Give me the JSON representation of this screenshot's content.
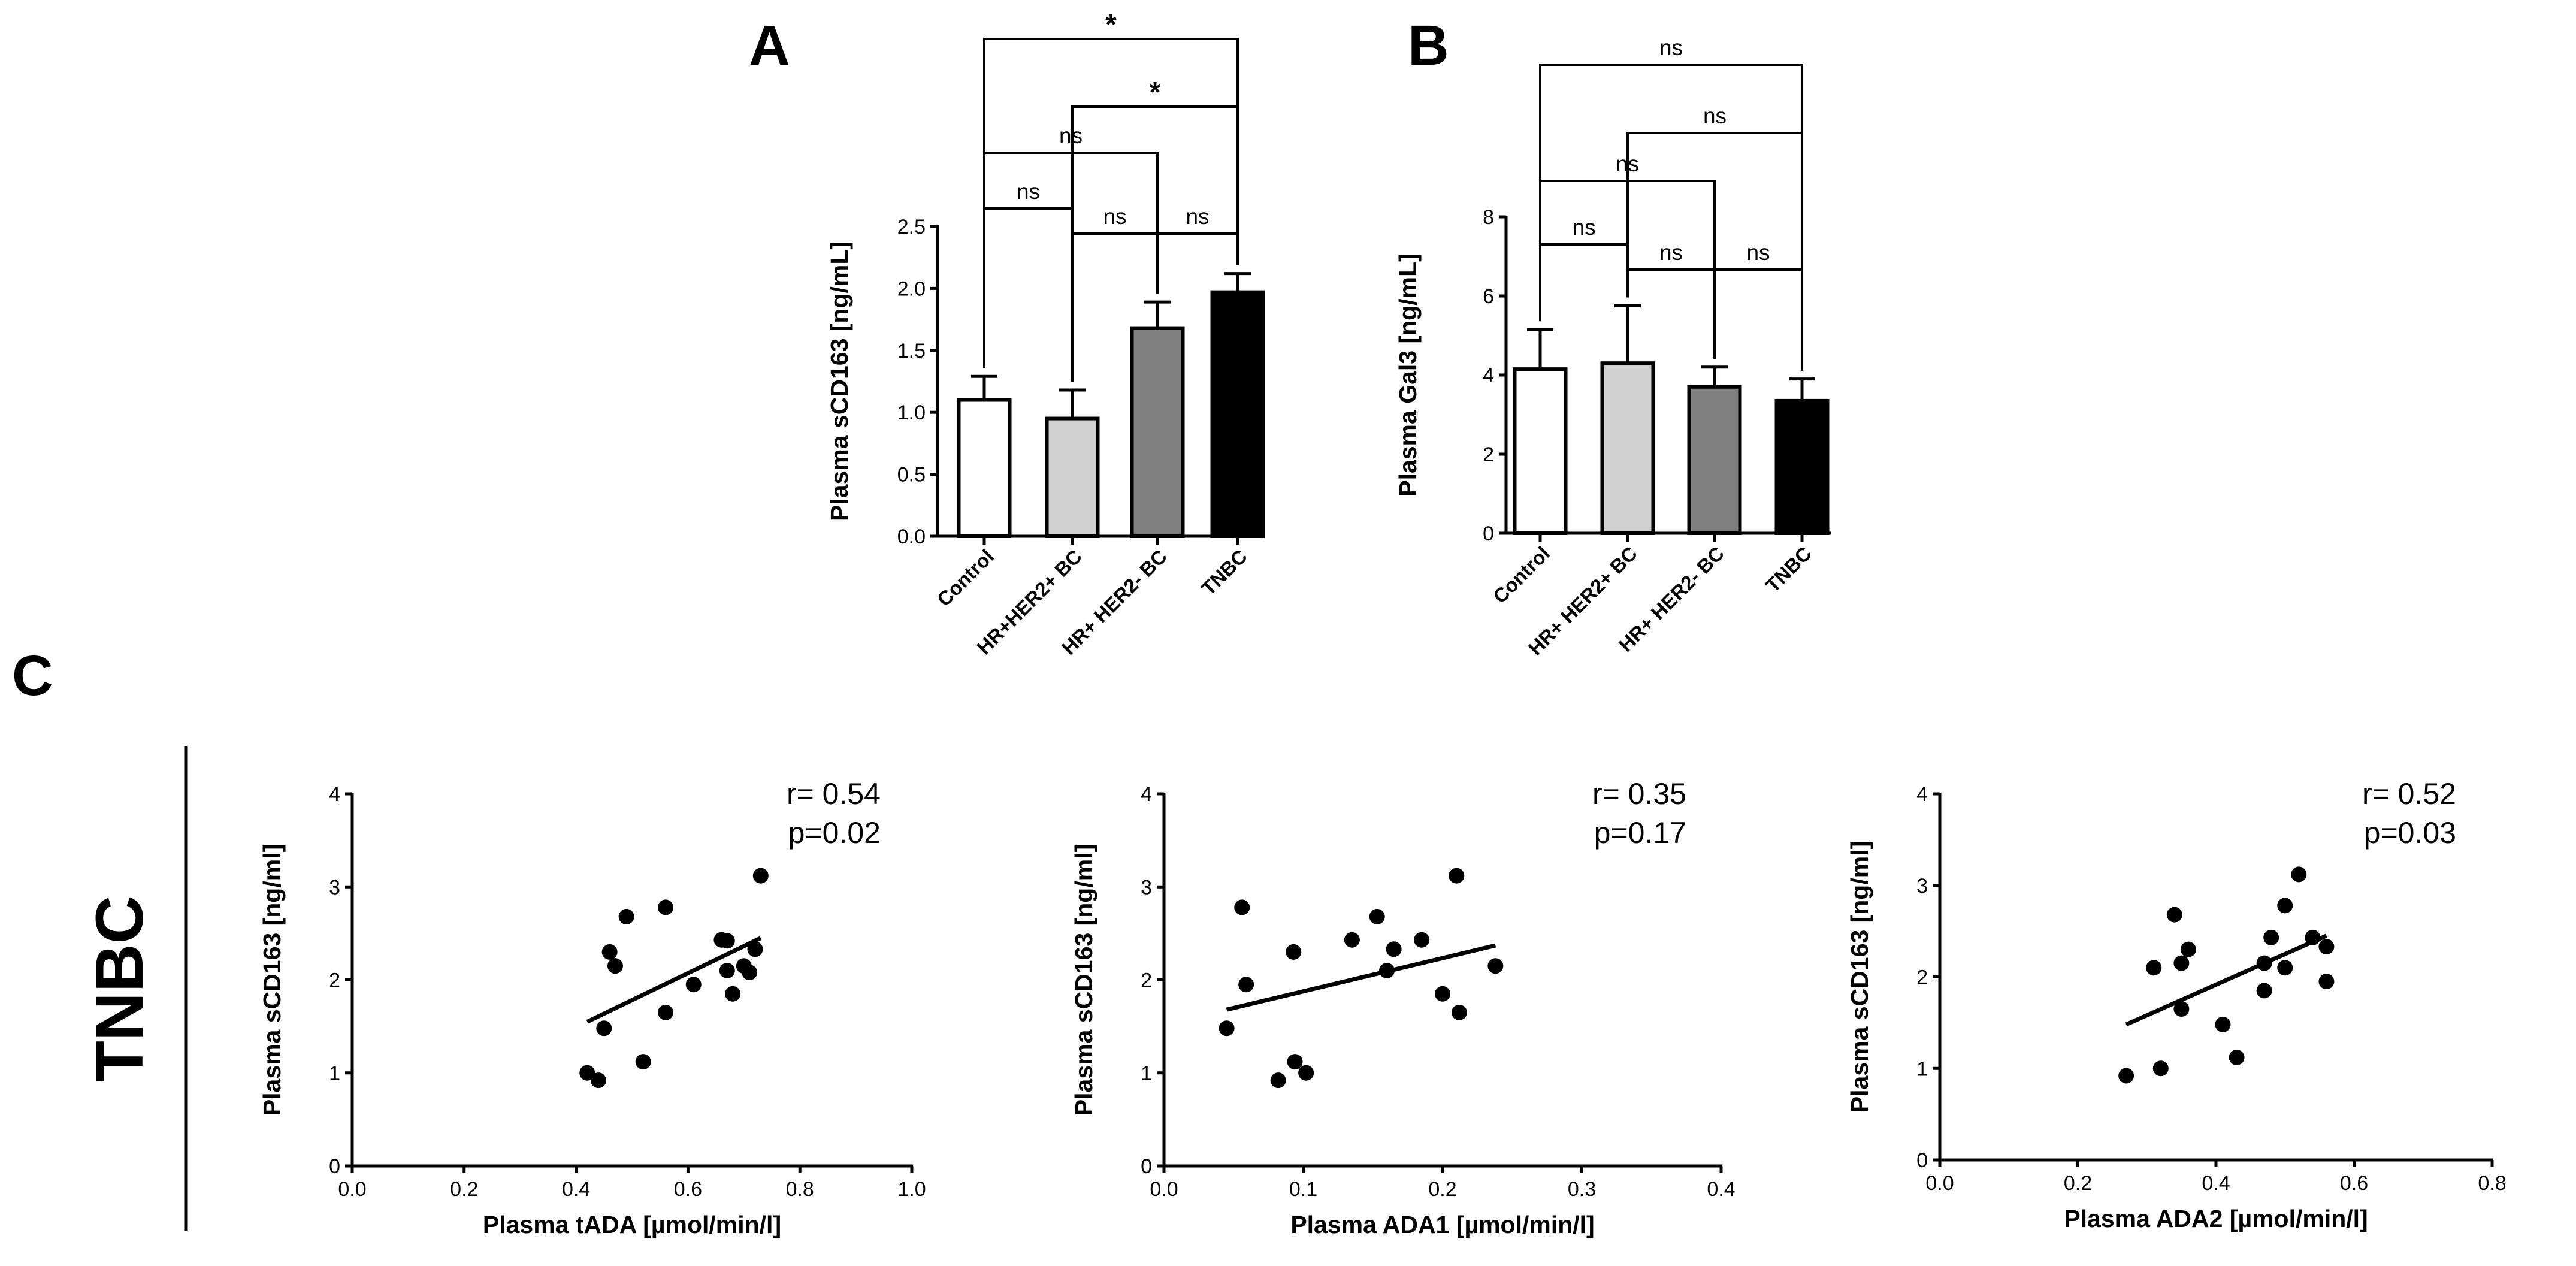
{
  "panel_labels": {
    "a": "A",
    "b": "B",
    "c": "C"
  },
  "row_label": "TNBC",
  "chart_data": [
    {
      "id": "A",
      "type": "bar",
      "ylabel": "Plasma sCD163 [ng/mL]",
      "ylim": [
        0,
        2.5
      ],
      "yticks": [
        "0.0",
        "0.5",
        "1.0",
        "1.5",
        "2.0",
        "2.5"
      ],
      "categories": [
        "Control",
        "HR+HER2+ BC",
        "HR+ HER2- BC",
        "TNBC"
      ],
      "values": [
        1.1,
        0.95,
        1.68,
        1.97
      ],
      "errors": [
        0.19,
        0.23,
        0.21,
        0.15
      ],
      "bar_colors": [
        "#ffffff",
        "#d0d0d0",
        "#808080",
        "#000000"
      ],
      "comparisons": [
        {
          "from": 0,
          "to": 3,
          "label": "*"
        },
        {
          "from": 1,
          "to": 3,
          "label": "*"
        },
        {
          "from": 0,
          "to": 2,
          "label": "ns"
        },
        {
          "from": 0,
          "to": 1,
          "label": "ns"
        },
        {
          "from": 1,
          "to": 2,
          "label": "ns"
        },
        {
          "from": 2,
          "to": 3,
          "label": "ns"
        }
      ]
    },
    {
      "id": "B",
      "type": "bar",
      "ylabel": "Plasma Gal3 [ng/mL]",
      "ylim": [
        0,
        8
      ],
      "yticks": [
        "0",
        "2",
        "4",
        "6",
        "8"
      ],
      "categories": [
        "Control",
        "HR+ HER2+ BC",
        "HR+ HER2- BC",
        "TNBC"
      ],
      "values": [
        4.15,
        4.3,
        3.7,
        3.35
      ],
      "errors": [
        1.0,
        1.45,
        0.5,
        0.55
      ],
      "bar_colors": [
        "#ffffff",
        "#d0d0d0",
        "#808080",
        "#000000"
      ],
      "comparisons": [
        {
          "from": 0,
          "to": 3,
          "label": "ns"
        },
        {
          "from": 1,
          "to": 3,
          "label": "ns"
        },
        {
          "from": 0,
          "to": 2,
          "label": "ns"
        },
        {
          "from": 0,
          "to": 1,
          "label": "ns"
        },
        {
          "from": 1,
          "to": 2,
          "label": "ns"
        },
        {
          "from": 2,
          "to": 3,
          "label": "ns"
        }
      ]
    },
    {
      "id": "C1",
      "type": "scatter",
      "xlabel": "Plasma tADA [µmol/min/l]",
      "ylabel": "Plasma sCD163 [ng/ml]",
      "xlim": [
        0,
        1.0
      ],
      "ylim": [
        0,
        4
      ],
      "xticks": [
        "0.0",
        "0.2",
        "0.4",
        "0.6",
        "0.8",
        "1.0"
      ],
      "yticks": [
        "0",
        "1",
        "2",
        "3",
        "4"
      ],
      "points": [
        [
          0.42,
          1.0
        ],
        [
          0.44,
          0.92
        ],
        [
          0.45,
          1.48
        ],
        [
          0.46,
          2.3
        ],
        [
          0.47,
          2.15
        ],
        [
          0.49,
          2.68
        ],
        [
          0.52,
          1.12
        ],
        [
          0.56,
          2.78
        ],
        [
          0.56,
          1.65
        ],
        [
          0.61,
          1.95
        ],
        [
          0.66,
          2.43
        ],
        [
          0.67,
          2.42
        ],
        [
          0.67,
          2.1
        ],
        [
          0.68,
          1.85
        ],
        [
          0.7,
          2.15
        ],
        [
          0.71,
          2.08
        ],
        [
          0.72,
          2.33
        ],
        [
          0.73,
          3.12
        ]
      ],
      "fit": [
        [
          0.42,
          1.55
        ],
        [
          0.73,
          2.45
        ]
      ],
      "r_text": "r= 0.54",
      "p_text": "p=0.02"
    },
    {
      "id": "C2",
      "type": "scatter",
      "xlabel": "Plasma ADA1 [µmol/min/l]",
      "ylabel": "Plasma sCD163 [ng/ml]",
      "xlim": [
        0,
        0.4
      ],
      "ylim": [
        0,
        4
      ],
      "xticks": [
        "0.0",
        "0.1",
        "0.2",
        "0.3",
        "0.4"
      ],
      "yticks": [
        "0",
        "1",
        "2",
        "3",
        "4"
      ],
      "points": [
        [
          0.045,
          1.48
        ],
        [
          0.056,
          2.78
        ],
        [
          0.059,
          1.95
        ],
        [
          0.082,
          0.92
        ],
        [
          0.093,
          2.3
        ],
        [
          0.094,
          1.12
        ],
        [
          0.102,
          1.0
        ],
        [
          0.135,
          2.43
        ],
        [
          0.153,
          2.68
        ],
        [
          0.16,
          2.1
        ],
        [
          0.165,
          2.33
        ],
        [
          0.185,
          2.43
        ],
        [
          0.2,
          1.85
        ],
        [
          0.21,
          3.12
        ],
        [
          0.212,
          1.65
        ],
        [
          0.238,
          2.15
        ]
      ],
      "fit": [
        [
          0.045,
          1.68
        ],
        [
          0.238,
          2.37
        ]
      ],
      "r_text": "r= 0.35",
      "p_text": "p=0.17"
    },
    {
      "id": "C3",
      "type": "scatter",
      "xlabel": "Plasma ADA2 [µmol/min/l]",
      "ylabel": "Plasma sCD163 [ng/ml]",
      "xlim": [
        0,
        0.8
      ],
      "ylim": [
        0,
        4
      ],
      "xticks": [
        "0.0",
        "0.2",
        "0.4",
        "0.6",
        "0.8"
      ],
      "yticks": [
        "0",
        "1",
        "2",
        "3",
        "4"
      ],
      "points": [
        [
          0.27,
          0.92
        ],
        [
          0.31,
          2.1
        ],
        [
          0.32,
          1.0
        ],
        [
          0.34,
          2.68
        ],
        [
          0.35,
          1.65
        ],
        [
          0.35,
          2.15
        ],
        [
          0.36,
          2.3
        ],
        [
          0.41,
          1.48
        ],
        [
          0.43,
          1.12
        ],
        [
          0.47,
          2.15
        ],
        [
          0.47,
          1.85
        ],
        [
          0.48,
          2.43
        ],
        [
          0.5,
          2.78
        ],
        [
          0.5,
          2.1
        ],
        [
          0.52,
          3.12
        ],
        [
          0.54,
          2.43
        ],
        [
          0.56,
          1.95
        ],
        [
          0.56,
          2.33
        ]
      ],
      "fit": [
        [
          0.27,
          1.48
        ],
        [
          0.56,
          2.45
        ]
      ],
      "r_text": "r= 0.52",
      "p_text": "p=0.03"
    }
  ]
}
